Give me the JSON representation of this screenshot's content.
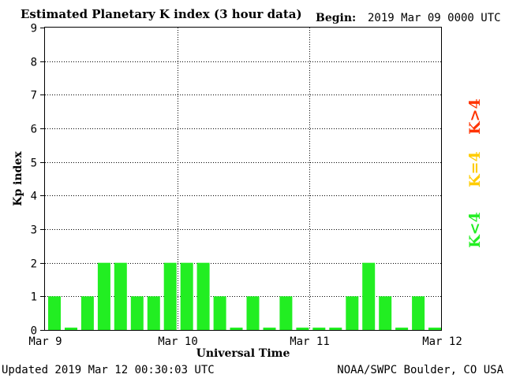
{
  "header": {
    "title": "Estimated Planetary K index (3 hour data)",
    "begin_label": "Begin:",
    "begin_value": "2019 Mar 09 0000 UTC"
  },
  "footer": {
    "updated": "Updated 2019 Mar 12 00:30:03 UTC",
    "source": "NOAA/SWPC Boulder, CO USA"
  },
  "legend": {
    "high": {
      "label": "K>4",
      "color": "#ff3300"
    },
    "equal": {
      "label": "K=4",
      "color": "#ffcc00"
    },
    "low": {
      "label": "K<4",
      "color": "#22ee22"
    }
  },
  "chart_data": {
    "type": "bar",
    "title": "Estimated Planetary K index (3 hour data)",
    "xlabel": "Universal Time",
    "ylabel": "Kp index",
    "ylim": [
      0,
      9
    ],
    "yticks": [
      0,
      1,
      2,
      3,
      4,
      5,
      6,
      7,
      8,
      9
    ],
    "x_tick_labels": [
      "Mar 9",
      "Mar 10",
      "Mar 11",
      "Mar 12"
    ],
    "interval_hours": 3,
    "bar_color": "#22ee22",
    "grid": true,
    "values": [
      1,
      0,
      1,
      2,
      2,
      1,
      1,
      2,
      2,
      2,
      1,
      0,
      1,
      0,
      1,
      0,
      0,
      0,
      1,
      2,
      1,
      0,
      1,
      0
    ]
  }
}
